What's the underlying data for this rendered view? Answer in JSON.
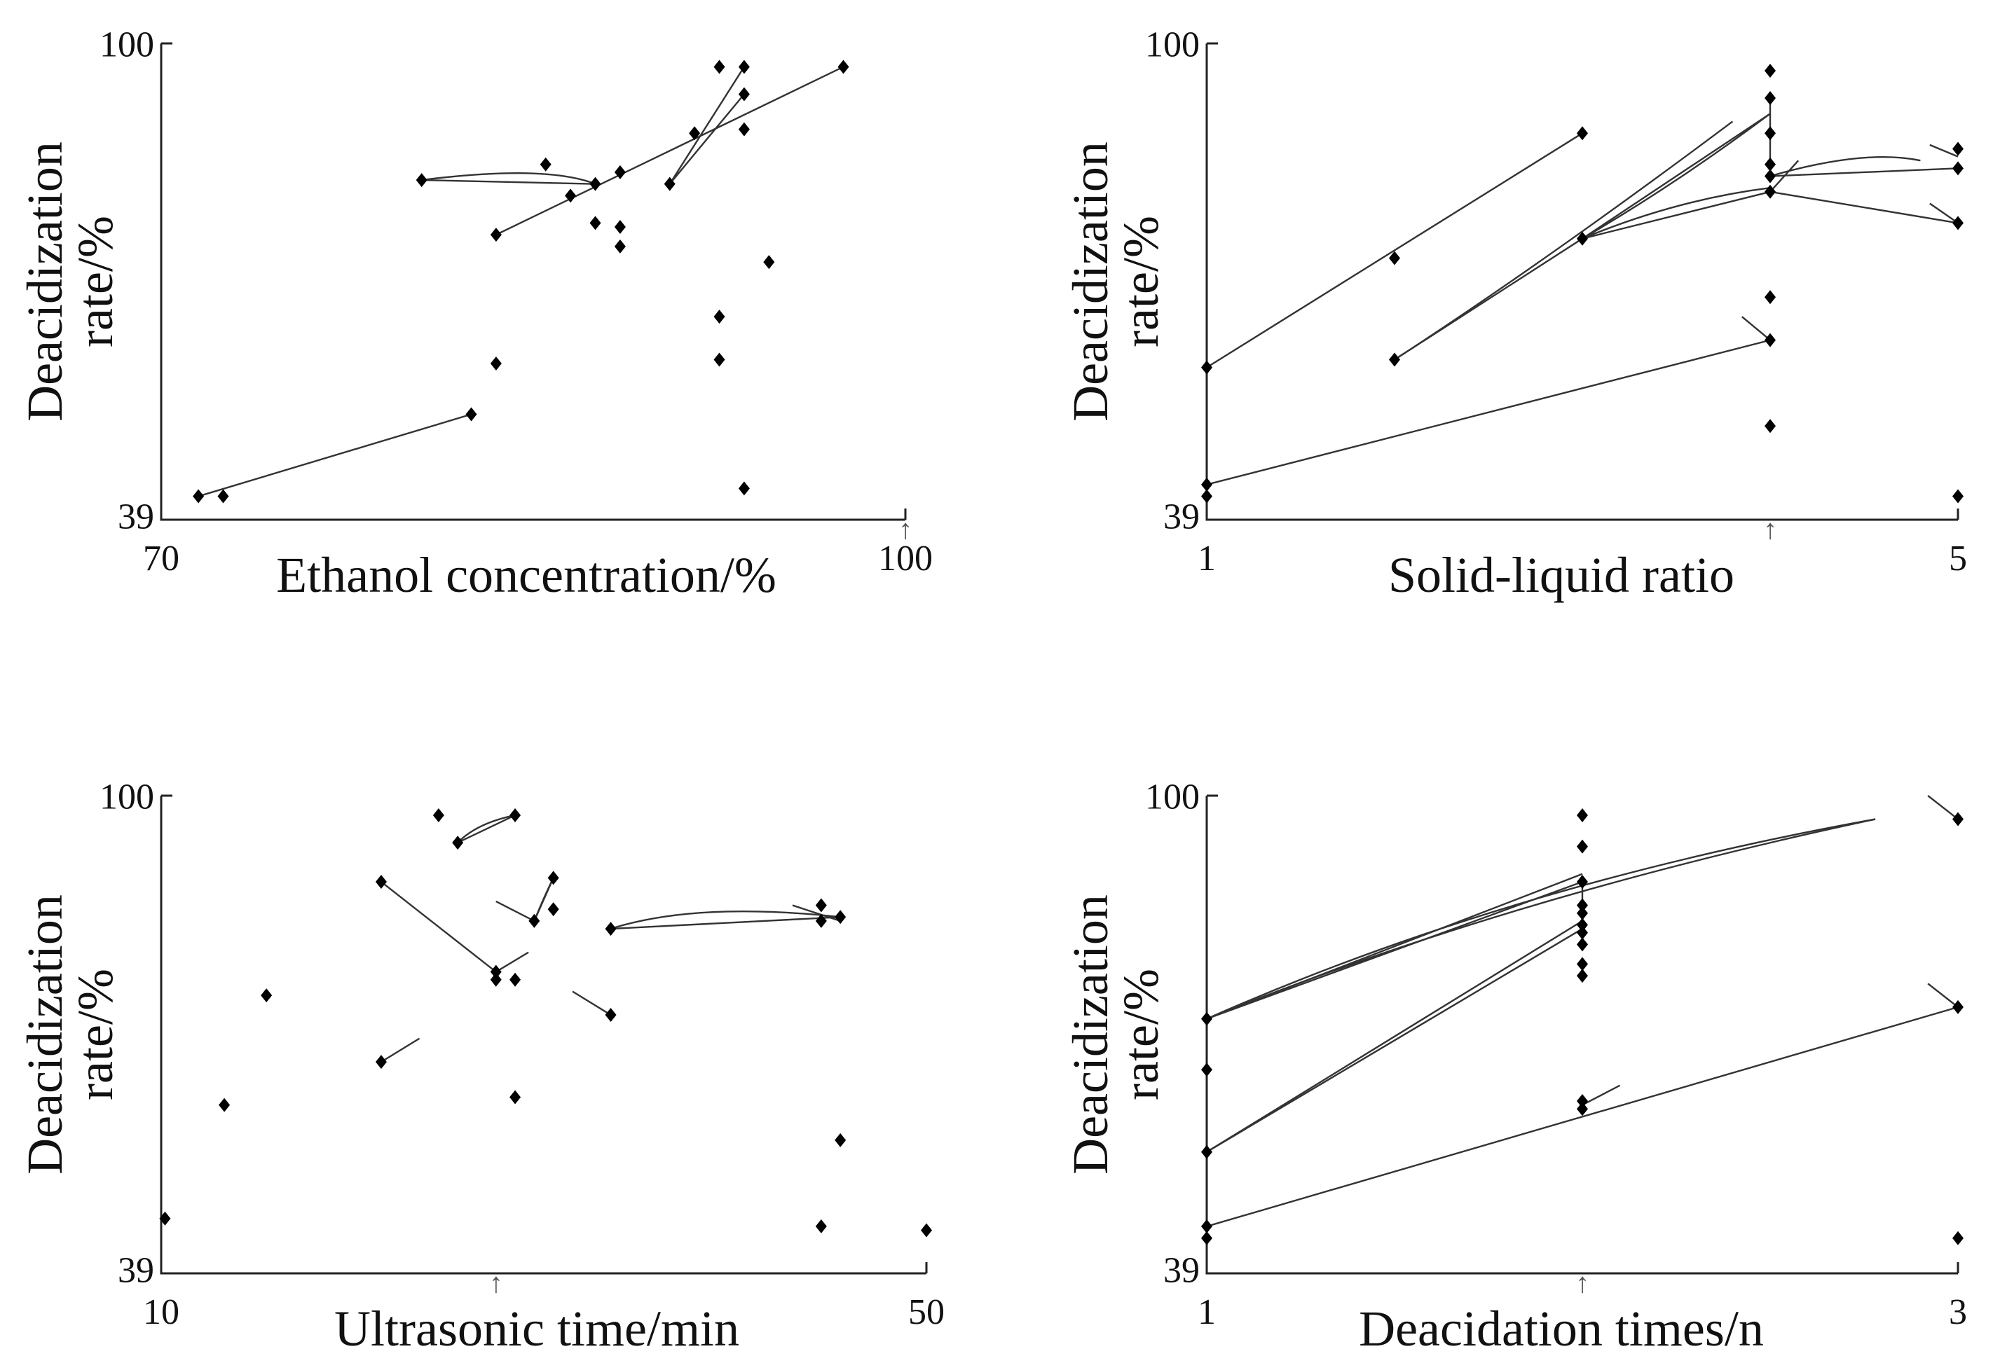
{
  "chart_data": [
    {
      "type": "scatter",
      "title": "",
      "ylabel_line1": "Deacidization",
      "ylabel_line2": "rate/%",
      "xlabel": "Ethanol concentration/%",
      "xlim": [
        70,
        100
      ],
      "ylim": [
        39,
        100
      ],
      "xtick_labels": [
        "70",
        "100"
      ],
      "ytick_labels": [
        "39",
        "100"
      ],
      "optimum_x": 100,
      "points": [
        [
          71.5,
          42
        ],
        [
          72.5,
          42
        ],
        [
          82.5,
          52.5
        ],
        [
          83.5,
          59
        ],
        [
          83.5,
          75.5
        ],
        [
          80.5,
          82.5
        ],
        [
          85.5,
          84.5
        ],
        [
          86.5,
          80.5
        ],
        [
          87.5,
          82
        ],
        [
          87.5,
          77
        ],
        [
          88.5,
          76.5
        ],
        [
          88.5,
          74
        ],
        [
          88.5,
          83.5
        ],
        [
          90.5,
          82
        ],
        [
          91.5,
          88.5
        ],
        [
          92.5,
          97
        ],
        [
          92.5,
          65
        ],
        [
          92.5,
          59.5
        ],
        [
          93.5,
          97
        ],
        [
          93.5,
          93.5
        ],
        [
          93.5,
          89
        ],
        [
          93.5,
          43
        ],
        [
          94.5,
          72
        ],
        [
          97.5,
          97
        ]
      ],
      "lines": [
        {
          "type": "straight",
          "pts": [
            [
              71.5,
              42
            ],
            [
              82.5,
              52.5
            ]
          ]
        },
        {
          "type": "straight",
          "pts": [
            [
              83.5,
              75.5
            ],
            [
              97.5,
              97
            ]
          ]
        },
        {
          "type": "curve",
          "pts": [
            [
              80.5,
              82.5
            ],
            [
              85.5,
              84.5
            ],
            [
              87.5,
              82
            ]
          ]
        },
        {
          "type": "straight",
          "pts": [
            [
              80.5,
              82.5
            ],
            [
              87.5,
              82
            ]
          ]
        },
        {
          "type": "straight",
          "pts": [
            [
              90.5,
              82
            ],
            [
              93.5,
              97
            ]
          ]
        },
        {
          "type": "straight",
          "pts": [
            [
              90.5,
              82
            ],
            [
              93.5,
              93.5
            ]
          ]
        }
      ]
    },
    {
      "type": "scatter",
      "title": "",
      "ylabel_line1": "Deacidization",
      "ylabel_line2": "rate/%",
      "xlabel": "Solid-liquid ratio",
      "xlim": [
        1,
        5
      ],
      "ylim": [
        39,
        100
      ],
      "xtick_labels": [
        "1",
        "5"
      ],
      "ytick_labels": [
        "39",
        "100"
      ],
      "optimum_x": 4,
      "points": [
        [
          1,
          58.5
        ],
        [
          1,
          43.5
        ],
        [
          1,
          42
        ],
        [
          2,
          72.5
        ],
        [
          2,
          59.5
        ],
        [
          3,
          88.5
        ],
        [
          3,
          75
        ],
        [
          4,
          96.5
        ],
        [
          4,
          93
        ],
        [
          4,
          88.5
        ],
        [
          4,
          84.5
        ],
        [
          4,
          83
        ],
        [
          4,
          81
        ],
        [
          4,
          67.5
        ],
        [
          4,
          62
        ],
        [
          4,
          51
        ],
        [
          5,
          86.5
        ],
        [
          5,
          84
        ],
        [
          5,
          77
        ],
        [
          5,
          42
        ]
      ],
      "lines": [
        {
          "type": "straight",
          "pts": [
            [
              1,
              58.5
            ],
            [
              3,
              88.5
            ]
          ]
        },
        {
          "type": "straight",
          "pts": [
            [
              1,
              43.5
            ],
            [
              4,
              62
            ]
          ]
        },
        {
          "type": "curve",
          "pts": [
            [
              2,
              59.5
            ],
            [
              2.8,
              72
            ],
            [
              3.8,
              90
            ]
          ]
        },
        {
          "type": "straight",
          "pts": [
            [
              2,
              59.5
            ],
            [
              3,
              75
            ]
          ]
        },
        {
          "type": "straight",
          "pts": [
            [
              3,
              75
            ],
            [
              4,
              81
            ]
          ]
        },
        {
          "type": "straight",
          "pts": [
            [
              3,
              75
            ],
            [
              4,
              91
            ]
          ]
        },
        {
          "type": "curve",
          "pts": [
            [
              3,
              75
            ],
            [
              3.5,
              82
            ],
            [
              4,
              91
            ]
          ]
        },
        {
          "type": "curve",
          "pts": [
            [
              3,
              75
            ],
            [
              3.5,
              80
            ],
            [
              4,
              81.5
            ]
          ]
        },
        {
          "type": "straight",
          "pts": [
            [
              4,
              81
            ],
            [
              5,
              77
            ]
          ]
        },
        {
          "type": "straight",
          "pts": [
            [
              4,
              83
            ],
            [
              5,
              84
            ]
          ]
        },
        {
          "type": "curve",
          "pts": [
            [
              4,
              83
            ],
            [
              4.5,
              86.5
            ],
            [
              4.8,
              85
            ]
          ]
        },
        {
          "type": "straight",
          "pts": [
            [
              4,
              81
            ],
            [
              4.15,
              85
            ]
          ]
        },
        {
          "type": "straight",
          "pts": [
            [
              4,
              93
            ],
            [
              4,
              83
            ]
          ]
        },
        {
          "type": "straight",
          "pts": [
            [
              3.85,
              65
            ],
            [
              4,
              62
            ]
          ]
        },
        {
          "type": "straight",
          "pts": [
            [
              4.85,
              87
            ],
            [
              5,
              85.5
            ]
          ]
        },
        {
          "type": "straight",
          "pts": [
            [
              4.85,
              79.5
            ],
            [
              5,
              77
            ]
          ]
        }
      ]
    },
    {
      "type": "scatter",
      "title": "",
      "ylabel_line1": "Deacidization",
      "ylabel_line2": "rate/%",
      "xlabel": "Ultrasonic time/min",
      "xlim": [
        10,
        50
      ],
      "ylim": [
        39,
        100
      ],
      "xtick_labels": [
        "10",
        "50"
      ],
      "ytick_labels": [
        "39",
        "100"
      ],
      "optimum_x": 27.5,
      "points": [
        [
          10.2,
          46
        ],
        [
          13.3,
          60.5
        ],
        [
          15.5,
          74.5
        ],
        [
          21.5,
          66
        ],
        [
          21.5,
          89
        ],
        [
          24.5,
          97.5
        ],
        [
          25.5,
          94
        ],
        [
          27.5,
          77.5
        ],
        [
          27.5,
          76.5
        ],
        [
          28.5,
          97.5
        ],
        [
          28.5,
          76.5
        ],
        [
          28.5,
          61.5
        ],
        [
          29.5,
          84
        ],
        [
          30.5,
          85.5
        ],
        [
          30.5,
          89.5
        ],
        [
          33.5,
          72
        ],
        [
          33.5,
          83
        ],
        [
          44.5,
          84
        ],
        [
          44.5,
          86
        ],
        [
          44.5,
          45
        ],
        [
          45.5,
          84.5
        ],
        [
          45.5,
          56
        ],
        [
          50,
          44.5
        ]
      ],
      "lines": [
        {
          "type": "straight",
          "pts": [
            [
              21.5,
              89
            ],
            [
              27.5,
              77.5
            ]
          ]
        },
        {
          "type": "straight",
          "pts": [
            [
              21.5,
              66
            ],
            [
              23.5,
              69
            ]
          ]
        },
        {
          "type": "curve",
          "pts": [
            [
              25.5,
              94
            ],
            [
              26.5,
              96.5
            ],
            [
              28.5,
              97.5
            ]
          ]
        },
        {
          "type": "straight",
          "pts": [
            [
              25.5,
              94
            ],
            [
              28.5,
              97.5
            ]
          ]
        },
        {
          "type": "straight",
          "pts": [
            [
              27.5,
              77.5
            ],
            [
              29.2,
              80
            ]
          ]
        },
        {
          "type": "straight",
          "pts": [
            [
              27.5,
              86.5
            ],
            [
              29.5,
              84
            ]
          ]
        },
        {
          "type": "straight",
          "pts": [
            [
              29.5,
              84
            ],
            [
              30.5,
              89.5
            ]
          ]
        },
        {
          "type": "curve",
          "pts": [
            [
              29.5,
              84
            ],
            [
              30,
              87
            ],
            [
              30.5,
              89.5
            ]
          ]
        },
        {
          "type": "curve",
          "pts": [
            [
              33.5,
              83
            ],
            [
              38,
              86.5
            ],
            [
              45.5,
              84.5
            ]
          ]
        },
        {
          "type": "straight",
          "pts": [
            [
              33.5,
              83
            ],
            [
              45.5,
              84.5
            ]
          ]
        },
        {
          "type": "straight",
          "pts": [
            [
              43,
              86
            ],
            [
              45.5,
              84
            ]
          ]
        },
        {
          "type": "straight",
          "pts": [
            [
              31.5,
              75
            ],
            [
              33.5,
              72
            ]
          ]
        }
      ]
    },
    {
      "type": "scatter",
      "title": "",
      "ylabel_line1": "Deacidization",
      "ylabel_line2": "rate/%",
      "xlabel": "Deacidation times/n",
      "xlim": [
        1,
        3
      ],
      "ylim": [
        39,
        100
      ],
      "xtick_labels": [
        "1",
        "3"
      ],
      "ytick_labels": [
        "39",
        "100"
      ],
      "optimum_x": 2,
      "points": [
        [
          1,
          71.5
        ],
        [
          1,
          65
        ],
        [
          1,
          54.5
        ],
        [
          1,
          45
        ],
        [
          1,
          43.5
        ],
        [
          2,
          97.5
        ],
        [
          2,
          93.5
        ],
        [
          2,
          89
        ],
        [
          2,
          86
        ],
        [
          2,
          85
        ],
        [
          2,
          83.5
        ],
        [
          2,
          82.5
        ],
        [
          2,
          81
        ],
        [
          2,
          78.5
        ],
        [
          2,
          77
        ],
        [
          2,
          61
        ],
        [
          2,
          60
        ],
        [
          3,
          97
        ],
        [
          3,
          73
        ],
        [
          3,
          43.5
        ]
      ],
      "lines": [
        {
          "type": "curve",
          "pts": [
            [
              1,
              71.5
            ],
            [
              1.8,
              87
            ],
            [
              2.78,
              97
            ]
          ]
        },
        {
          "type": "curve",
          "pts": [
            [
              1,
              71.5
            ],
            [
              1.8,
              88.5
            ],
            [
              2.78,
              97
            ]
          ]
        },
        {
          "type": "straight",
          "pts": [
            [
              1,
              71.5
            ],
            [
              2,
              89
            ]
          ]
        },
        {
          "type": "straight",
          "pts": [
            [
              1,
              71.5
            ],
            [
              2,
              90
            ]
          ]
        },
        {
          "type": "straight",
          "pts": [
            [
              1,
              54.5
            ],
            [
              2,
              84
            ]
          ]
        },
        {
          "type": "straight",
          "pts": [
            [
              1,
              54.5
            ],
            [
              2,
              83
            ]
          ]
        },
        {
          "type": "straight",
          "pts": [
            [
              1,
              45
            ],
            [
              3,
              73
            ]
          ]
        },
        {
          "type": "straight",
          "pts": [
            [
              2,
              60.5
            ],
            [
              2.1,
              63
            ]
          ]
        },
        {
          "type": "straight",
          "pts": [
            [
              2,
              89
            ],
            [
              2,
              83
            ]
          ]
        },
        {
          "type": "straight",
          "pts": [
            [
              2.92,
              100
            ],
            [
              3,
              97
            ]
          ]
        },
        {
          "type": "straight",
          "pts": [
            [
              2.92,
              76
            ],
            [
              3,
              73
            ]
          ]
        }
      ]
    }
  ]
}
